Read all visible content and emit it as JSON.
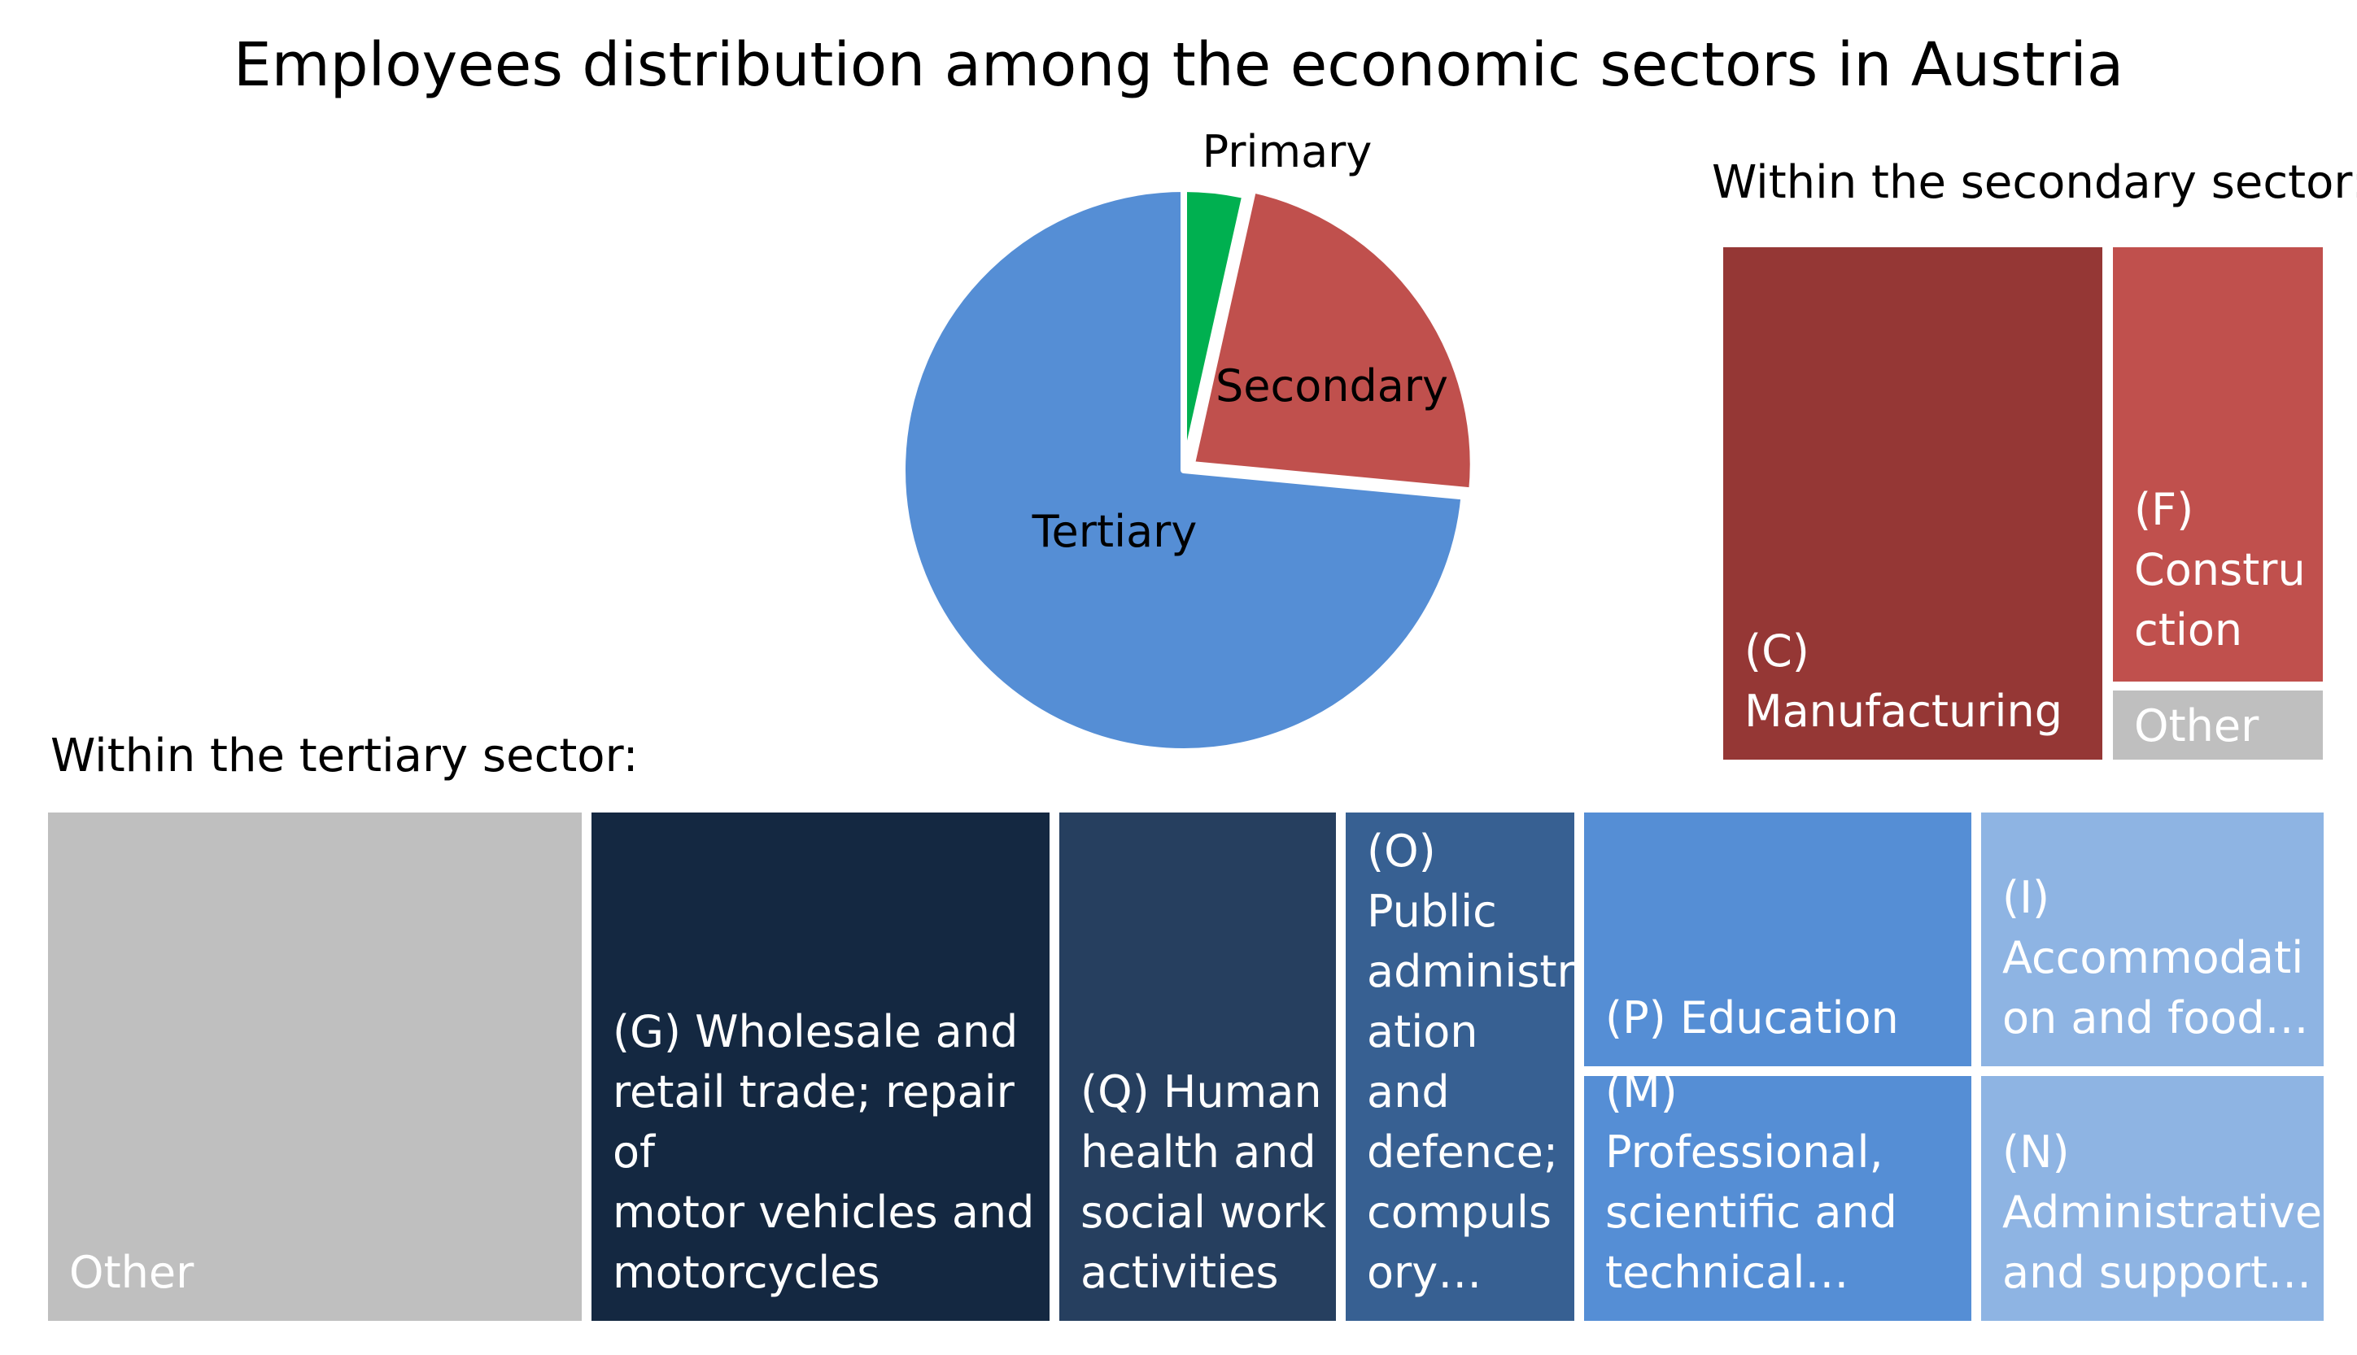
{
  "title": "Employees distribution among the economic sectors in Austria",
  "chart_data": [
    {
      "type": "pie",
      "title": "Employees distribution among the economic sectors in Austria",
      "slices": [
        {
          "label": "Primary",
          "value": 3.5,
          "color": "#00b050"
        },
        {
          "label": "Secondary",
          "value": 23,
          "color": "#c0504d"
        },
        {
          "label": "Tertiary",
          "value": 73.5,
          "color": "#558ed5"
        }
      ],
      "start": "12 o'clock",
      "direction": "clockwise"
    },
    {
      "type": "treemap",
      "title": "Within the secondary sector:",
      "items": [
        {
          "label": "(C)\nManufacturing",
          "value": 63,
          "color": "#953735"
        },
        {
          "label": "(F)\nConstru\nction",
          "value": 30,
          "color": "#c0504d"
        },
        {
          "label": "Other",
          "value": 7,
          "color": "#bfbfbf"
        }
      ]
    },
    {
      "type": "treemap",
      "title": "Within the tertiary sector:",
      "items": [
        {
          "label": "Other",
          "value": 23.1,
          "color": "#bfbfbf"
        },
        {
          "label": "(G) Wholesale and\nretail trade; repair of\nmotor vehicles and\nmotorcycles",
          "value": 20,
          "color": "#142841"
        },
        {
          "label": "(Q) Human\nhealth and\nsocial work\nactivities",
          "value": 12,
          "color": "#263f5f"
        },
        {
          "label": "(O)\nPublic\nadministr\nation and\ndefence;\ncompuls\nory…",
          "value": 10,
          "color": "#376092"
        },
        {
          "label": "(P) Education",
          "value": 8.3,
          "color": "#558ed5"
        },
        {
          "label": "(M) Professional,\nscientific and\ntechnical…",
          "value": 8.2,
          "color": "#558ed5"
        },
        {
          "label": "(I)\nAccommodati\non and food…",
          "value": 7.2,
          "color": "#8eb4e3"
        },
        {
          "label": "(N)\nAdministrative\nand support…",
          "value": 7.2,
          "color": "#8eb4e3"
        }
      ]
    }
  ]
}
